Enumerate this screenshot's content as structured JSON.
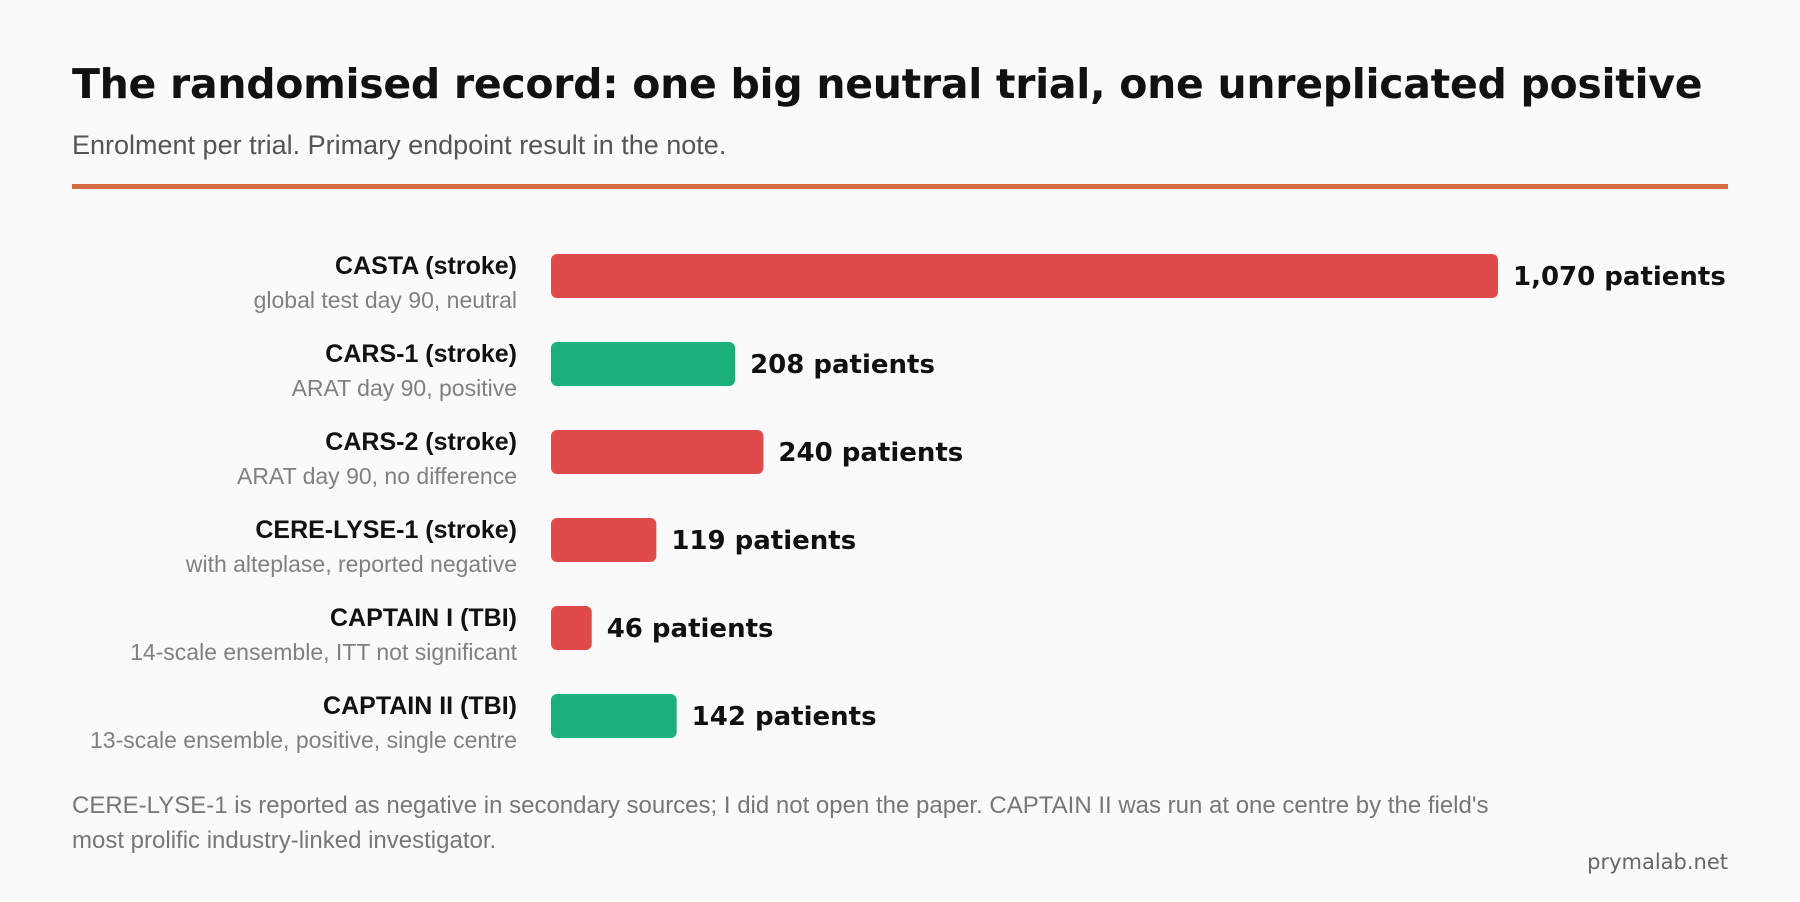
{
  "header": {
    "title": "The randomised record: one big neutral trial, one unreplicated positive",
    "subtitle": "Enrolment per trial. Primary endpoint result in the note."
  },
  "footer": {
    "note": "CERE-LYSE-1 is reported as negative in secondary sources; I did not open the paper. CAPTAIN II was run at one centre by the field's most prolific industry-linked investigator.",
    "source": "prymalab.net"
  },
  "colors": {
    "accent_rule": "#d46a3f",
    "neutral_negative": "#e04a4a",
    "positive": "#1bb07a"
  },
  "chart_data": {
    "type": "bar",
    "orientation": "horizontal",
    "categories": [
      "CASTA (stroke)",
      "CARS-1 (stroke)",
      "CARS-2 (stroke)",
      "CERE-LYSE-1 (stroke)",
      "CAPTAIN I (TBI)",
      "CAPTAIN II (TBI)"
    ],
    "sublabels": [
      "global test day 90, neutral",
      "ARAT day 90, positive",
      "ARAT day 90, no difference",
      "with alteplase, reported negative",
      "14-scale ensemble, ITT not significant",
      "13-scale ensemble, positive, single centre"
    ],
    "values": [
      1070,
      208,
      240,
      119,
      46,
      142
    ],
    "value_labels": [
      "1,070 patients",
      "208 patients",
      "240 patients",
      "119 patients",
      "46 patients",
      "142 patients"
    ],
    "outcome": [
      "neutral",
      "positive",
      "neutral",
      "negative",
      "negative",
      "positive"
    ],
    "bar_colors": [
      "#e04a4a",
      "#1bb07a",
      "#e04a4a",
      "#e04a4a",
      "#e04a4a",
      "#1bb07a"
    ],
    "xlim": [
      0,
      1070
    ],
    "grid": false,
    "legend": "none"
  }
}
